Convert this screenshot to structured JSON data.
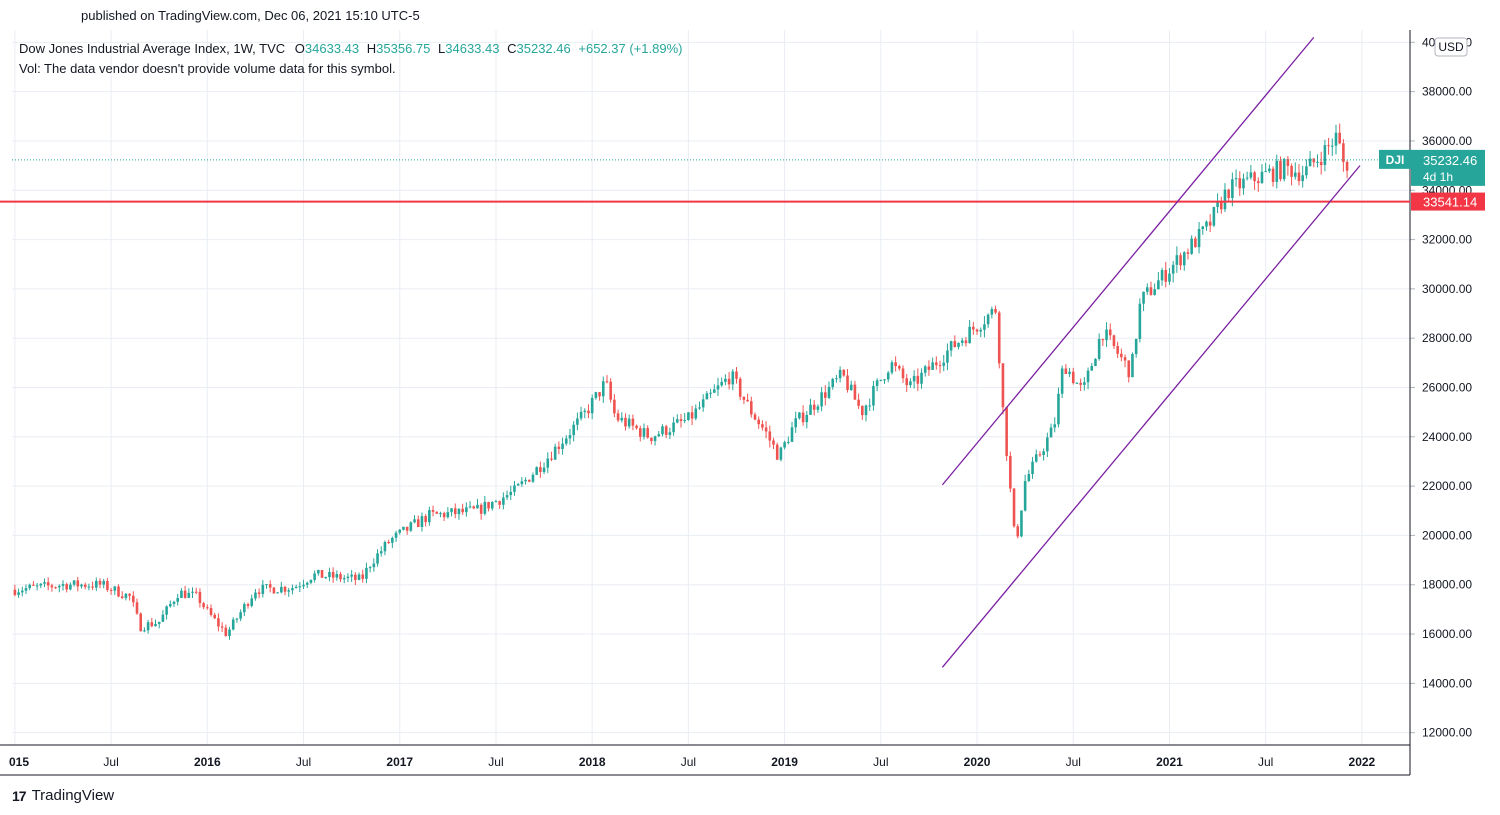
{
  "header": {
    "published": "published on TradingView.com, Dec 06, 2021 15:10 UTC-5"
  },
  "legend": {
    "symbol": "Dow Jones Industrial Average Index, 1W, TVC",
    "o_label": "O",
    "o_value": "34633.43",
    "h_label": "H",
    "h_value": "35356.75",
    "l_label": "L",
    "l_value": "34633.43",
    "c_label": "C",
    "c_value": "35232.46",
    "change": "+652.37 (+1.89%)",
    "vol": "Vol: The data vendor doesn't provide volume data for this symbol."
  },
  "footer": {
    "logo": "17",
    "brand": "TradingView"
  },
  "colors": {
    "up": "#26a69a",
    "down": "#ef5350",
    "channel": "#7b1fa2",
    "hline": "#f23645",
    "grid": "#e9edf3"
  },
  "chart_data": {
    "type": "candlestick",
    "title": "Dow Jones Industrial Average Index, 1W, TVC",
    "currency": "USD",
    "ylim": [
      11500,
      40500
    ],
    "y_ticks": [
      12000,
      14000,
      16000,
      18000,
      20000,
      22000,
      24000,
      26000,
      28000,
      30000,
      32000,
      34000,
      36000,
      38000,
      40000
    ],
    "y_tick_labels": [
      "12000.00",
      "14000.00",
      "16000.00",
      "18000.00",
      "20000.00",
      "22000.00",
      "24000.00",
      "26000.00",
      "28000.00",
      "30000.00",
      "32000.00",
      "34000.00",
      "36000.00",
      "38000.00",
      "40000.00"
    ],
    "x_range": [
      2014.985,
      2022.25
    ],
    "x_ticks": [
      {
        "t": 2015.0,
        "label": "015",
        "bold": true
      },
      {
        "t": 2015.5,
        "label": "Jul",
        "bold": false
      },
      {
        "t": 2016.0,
        "label": "2016",
        "bold": true
      },
      {
        "t": 2016.5,
        "label": "Jul",
        "bold": false
      },
      {
        "t": 2017.0,
        "label": "2017",
        "bold": true
      },
      {
        "t": 2017.5,
        "label": "Jul",
        "bold": false
      },
      {
        "t": 2018.0,
        "label": "2018",
        "bold": true
      },
      {
        "t": 2018.5,
        "label": "Jul",
        "bold": false
      },
      {
        "t": 2019.0,
        "label": "2019",
        "bold": true
      },
      {
        "t": 2019.5,
        "label": "Jul",
        "bold": false
      },
      {
        "t": 2020.0,
        "label": "2020",
        "bold": true
      },
      {
        "t": 2020.5,
        "label": "Jul",
        "bold": false
      },
      {
        "t": 2021.0,
        "label": "2021",
        "bold": true
      },
      {
        "t": 2021.5,
        "label": "Jul",
        "bold": false
      },
      {
        "t": 2022.0,
        "label": "2022",
        "bold": true
      }
    ],
    "anchors": [
      [
        2015.0,
        17800
      ],
      [
        2015.25,
        18000
      ],
      [
        2015.45,
        18000
      ],
      [
        2015.6,
        17500
      ],
      [
        2015.65,
        16300
      ],
      [
        2015.75,
        16500
      ],
      [
        2015.85,
        17700
      ],
      [
        2015.95,
        17500
      ],
      [
        2016.0,
        16900
      ],
      [
        2016.1,
        16000
      ],
      [
        2016.25,
        17800
      ],
      [
        2016.45,
        17900
      ],
      [
        2016.55,
        18400
      ],
      [
        2016.8,
        18200
      ],
      [
        2016.85,
        18900
      ],
      [
        2016.95,
        19800
      ],
      [
        2017.15,
        20800
      ],
      [
        2017.4,
        21000
      ],
      [
        2017.6,
        21800
      ],
      [
        2017.75,
        23000
      ],
      [
        2017.95,
        24800
      ],
      [
        2018.07,
        26200
      ],
      [
        2018.12,
        24800
      ],
      [
        2018.3,
        24000
      ],
      [
        2018.5,
        24700
      ],
      [
        2018.72,
        26500
      ],
      [
        2018.82,
        25100
      ],
      [
        2018.9,
        24200
      ],
      [
        2018.97,
        23200
      ],
      [
        2019.05,
        24500
      ],
      [
        2019.3,
        26500
      ],
      [
        2019.4,
        25000
      ],
      [
        2019.55,
        27000
      ],
      [
        2019.65,
        26000
      ],
      [
        2019.85,
        27500
      ],
      [
        2020.1,
        29200
      ],
      [
        2020.13,
        25500
      ],
      [
        2020.2,
        19500
      ],
      [
        2020.25,
        22200
      ],
      [
        2020.4,
        24400
      ],
      [
        2020.45,
        27000
      ],
      [
        2020.55,
        25800
      ],
      [
        2020.65,
        28300
      ],
      [
        2020.8,
        26600
      ],
      [
        2020.85,
        29500
      ],
      [
        2021.0,
        30800
      ],
      [
        2021.2,
        32500
      ],
      [
        2021.3,
        34000
      ],
      [
        2021.45,
        34500
      ],
      [
        2021.6,
        34900
      ],
      [
        2021.7,
        34700
      ],
      [
        2021.82,
        35700
      ],
      [
        2021.87,
        36200
      ],
      [
        2021.92,
        34600
      ],
      [
        2021.93,
        35232.46
      ]
    ],
    "last_value": "35232.46",
    "last_label": "DJI",
    "countdown": "4d 1h",
    "hline_value": 33541.14,
    "hline_label": "33541.14",
    "channel_lines": [
      {
        "start": [
          2019.82,
          22050
        ],
        "end": [
          2021.75,
          40200
        ]
      },
      {
        "start": [
          2019.82,
          14650
        ],
        "end": [
          2021.99,
          35000
        ]
      }
    ]
  }
}
